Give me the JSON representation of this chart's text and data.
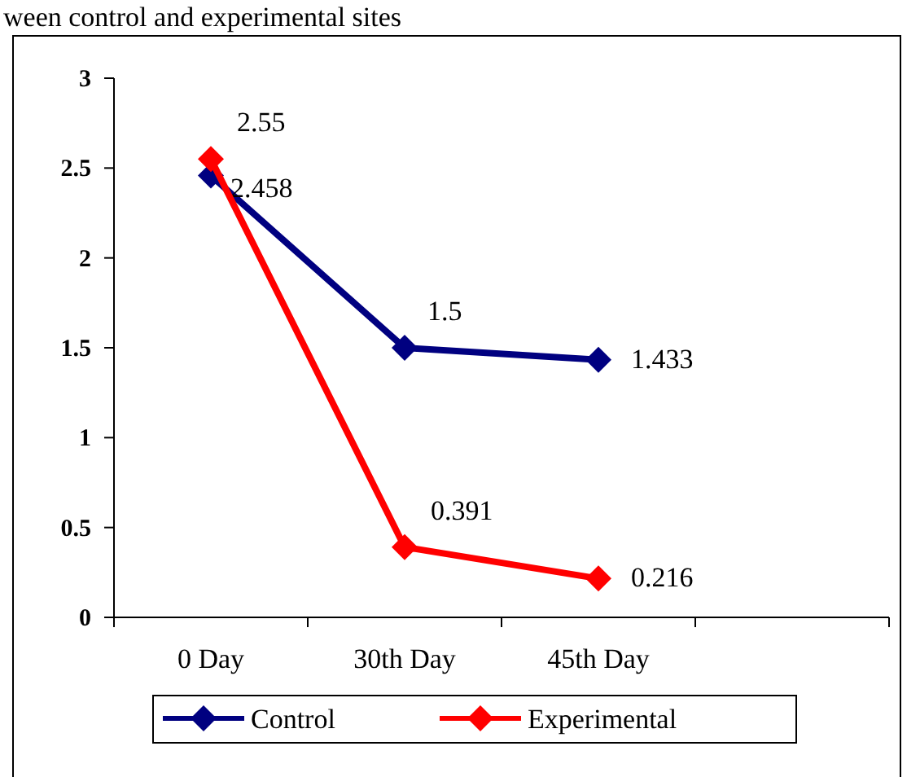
{
  "chart_data": {
    "type": "line",
    "title": "ween control and experimental sites",
    "categories": [
      "0 Day",
      "30th Day",
      "45th Day",
      null
    ],
    "series": [
      {
        "name": "Control",
        "color": "#000080",
        "values": [
          2.458,
          1.5,
          1.433,
          null
        ]
      },
      {
        "name": "Experimental",
        "color": "#ff0000",
        "values": [
          2.55,
          0.391,
          0.216,
          null
        ]
      }
    ],
    "ylim": [
      0,
      3
    ],
    "yticks": [
      0,
      0.5,
      1,
      1.5,
      2,
      2.5,
      3
    ],
    "data_labels": true,
    "marker": "diamond",
    "legend": "bottom",
    "grid": false,
    "line_style": "solid"
  }
}
